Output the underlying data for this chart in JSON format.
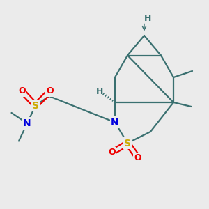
{
  "bg_color": "#ebebeb",
  "atom_colors": {
    "S": "#ccaa00",
    "O": "#ee0000",
    "N": "#0000dd",
    "C": "#3a7070",
    "H": "#3a7070",
    "bond": "#3a7070"
  },
  "bonds": {
    "lw": 1.6
  }
}
